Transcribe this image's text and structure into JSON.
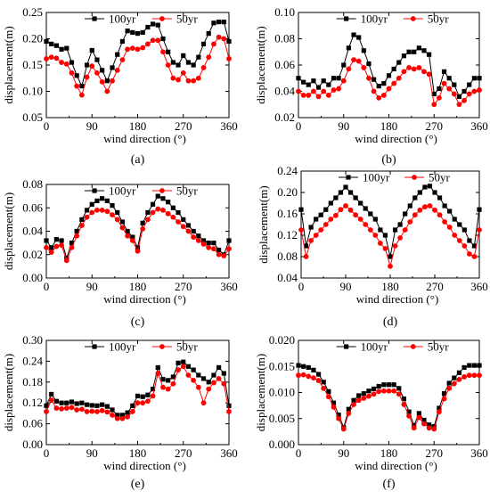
{
  "colors": {
    "s100": "#000000",
    "s50": "#ff0000"
  },
  "chart_data": [
    {
      "type": "line",
      "panel_label": "(a)",
      "xlabel": "wind direction (°)",
      "ylabel": "displacement(m)",
      "xlim": [
        0,
        360
      ],
      "ylim": [
        0.05,
        0.25
      ],
      "xticks": [
        0,
        90,
        180,
        270,
        360
      ],
      "yticks": [
        0.05,
        0.1,
        0.15,
        0.2,
        0.25
      ],
      "ytick_labels": [
        "0.05",
        "0.10",
        "0.15",
        "0.20",
        "0.25"
      ],
      "legend_position": "top",
      "x": [
        0,
        10,
        20,
        30,
        40,
        50,
        60,
        70,
        80,
        90,
        100,
        110,
        120,
        130,
        140,
        150,
        160,
        170,
        180,
        190,
        200,
        210,
        220,
        230,
        240,
        250,
        260,
        270,
        280,
        290,
        300,
        310,
        320,
        330,
        340,
        350,
        360
      ],
      "series": [
        {
          "name": "100yr",
          "values": [
            0.195,
            0.19,
            0.187,
            0.18,
            0.182,
            0.155,
            0.13,
            0.11,
            0.15,
            0.178,
            0.16,
            0.14,
            0.12,
            0.145,
            0.17,
            0.195,
            0.215,
            0.212,
            0.21,
            0.212,
            0.222,
            0.228,
            0.226,
            0.2,
            0.175,
            0.155,
            0.15,
            0.168,
            0.155,
            0.15,
            0.165,
            0.19,
            0.21,
            0.23,
            0.232,
            0.232,
            0.195
          ]
        },
        {
          "name": "50yr",
          "values": [
            0.162,
            0.165,
            0.163,
            0.155,
            0.152,
            0.135,
            0.11,
            0.093,
            0.127,
            0.148,
            0.135,
            0.118,
            0.1,
            0.12,
            0.14,
            0.16,
            0.18,
            0.182,
            0.18,
            0.183,
            0.19,
            0.197,
            0.197,
            0.175,
            0.15,
            0.125,
            0.122,
            0.135,
            0.12,
            0.12,
            0.125,
            0.145,
            0.165,
            0.19,
            0.203,
            0.2,
            0.162
          ]
        }
      ]
    },
    {
      "type": "line",
      "panel_label": "(b)",
      "xlabel": "wind direction (°)",
      "ylabel": "displacement(m)",
      "xlim": [
        0,
        360
      ],
      "ylim": [
        0.02,
        0.1
      ],
      "xticks": [
        0,
        90,
        180,
        270,
        360
      ],
      "yticks": [
        0.02,
        0.04,
        0.06,
        0.08,
        0.1
      ],
      "ytick_labels": [
        "0.02",
        "0.04",
        "0.06",
        "0.08",
        "0.10"
      ],
      "legend_position": "top",
      "x": [
        0,
        10,
        20,
        30,
        40,
        50,
        60,
        70,
        80,
        90,
        100,
        110,
        120,
        130,
        140,
        150,
        160,
        170,
        180,
        190,
        200,
        210,
        220,
        230,
        240,
        250,
        260,
        270,
        280,
        290,
        300,
        310,
        320,
        330,
        340,
        350,
        360
      ],
      "series": [
        {
          "name": "100yr",
          "values": [
            0.05,
            0.047,
            0.045,
            0.048,
            0.043,
            0.048,
            0.045,
            0.05,
            0.05,
            0.06,
            0.073,
            0.083,
            0.081,
            0.071,
            0.061,
            0.049,
            0.044,
            0.046,
            0.052,
            0.057,
            0.062,
            0.067,
            0.07,
            0.07,
            0.073,
            0.071,
            0.068,
            0.038,
            0.042,
            0.055,
            0.05,
            0.045,
            0.036,
            0.04,
            0.045,
            0.05,
            0.05
          ]
        },
        {
          "name": "50yr",
          "values": [
            0.04,
            0.037,
            0.037,
            0.04,
            0.036,
            0.04,
            0.037,
            0.041,
            0.042,
            0.048,
            0.057,
            0.064,
            0.063,
            0.058,
            0.05,
            0.04,
            0.035,
            0.037,
            0.042,
            0.046,
            0.05,
            0.055,
            0.058,
            0.057,
            0.058,
            0.055,
            0.053,
            0.03,
            0.035,
            0.046,
            0.042,
            0.038,
            0.03,
            0.033,
            0.038,
            0.04,
            0.041
          ]
        }
      ]
    },
    {
      "type": "line",
      "panel_label": "(c)",
      "xlabel": "wind direction (°)",
      "ylabel": "displacement(m)",
      "xlim": [
        0,
        360
      ],
      "ylim": [
        0.0,
        0.08
      ],
      "xticks": [
        0,
        90,
        180,
        270,
        360
      ],
      "yticks": [
        0.0,
        0.02,
        0.04,
        0.06,
        0.08
      ],
      "ytick_labels": [
        "0.00",
        "0.02",
        "0.04",
        "0.06",
        "0.08"
      ],
      "legend_position": "top",
      "x": [
        0,
        10,
        20,
        30,
        40,
        50,
        60,
        70,
        80,
        90,
        100,
        110,
        120,
        130,
        140,
        150,
        160,
        170,
        180,
        190,
        200,
        210,
        220,
        230,
        240,
        250,
        260,
        270,
        280,
        290,
        300,
        310,
        320,
        330,
        340,
        350,
        360
      ],
      "series": [
        {
          "name": "100yr",
          "values": [
            0.032,
            0.026,
            0.033,
            0.032,
            0.017,
            0.03,
            0.04,
            0.05,
            0.058,
            0.063,
            0.066,
            0.068,
            0.066,
            0.062,
            0.056,
            0.048,
            0.04,
            0.035,
            0.026,
            0.047,
            0.056,
            0.063,
            0.07,
            0.068,
            0.065,
            0.06,
            0.056,
            0.05,
            0.045,
            0.04,
            0.036,
            0.032,
            0.03,
            0.03,
            0.024,
            0.02,
            0.032
          ]
        },
        {
          "name": "50yr",
          "values": [
            0.026,
            0.022,
            0.027,
            0.028,
            0.015,
            0.026,
            0.036,
            0.045,
            0.052,
            0.056,
            0.058,
            0.058,
            0.057,
            0.054,
            0.05,
            0.043,
            0.036,
            0.032,
            0.023,
            0.042,
            0.05,
            0.056,
            0.059,
            0.058,
            0.055,
            0.052,
            0.048,
            0.044,
            0.04,
            0.035,
            0.032,
            0.029,
            0.026,
            0.025,
            0.02,
            0.019,
            0.025
          ]
        }
      ]
    },
    {
      "type": "line",
      "panel_label": "(d)",
      "xlabel": "wind direction (°)",
      "ylabel": "displacement(m)",
      "xlim": [
        0,
        360
      ],
      "ylim": [
        0.04,
        0.24
      ],
      "xticks": [
        0,
        90,
        180,
        270,
        360
      ],
      "yticks": [
        0.04,
        0.08,
        0.12,
        0.16,
        0.2,
        0.24
      ],
      "ytick_labels": [
        "0.04",
        "0.08",
        "0.12",
        "0.16",
        "0.20",
        "0.24"
      ],
      "legend_position": "top",
      "x": [
        0,
        10,
        20,
        30,
        40,
        50,
        60,
        70,
        80,
        90,
        100,
        110,
        120,
        130,
        140,
        150,
        160,
        170,
        180,
        190,
        200,
        210,
        220,
        230,
        240,
        250,
        260,
        270,
        280,
        290,
        300,
        310,
        320,
        330,
        340,
        350,
        360
      ],
      "series": [
        {
          "name": "100yr",
          "values": [
            0.168,
            0.1,
            0.135,
            0.15,
            0.158,
            0.168,
            0.18,
            0.19,
            0.2,
            0.21,
            0.2,
            0.19,
            0.18,
            0.17,
            0.16,
            0.15,
            0.13,
            0.12,
            0.08,
            0.13,
            0.14,
            0.16,
            0.175,
            0.19,
            0.2,
            0.21,
            0.212,
            0.2,
            0.19,
            0.175,
            0.165,
            0.15,
            0.14,
            0.13,
            0.11,
            0.1,
            0.168
          ]
        },
        {
          "name": "50yr",
          "values": [
            0.13,
            0.08,
            0.11,
            0.12,
            0.13,
            0.14,
            0.15,
            0.157,
            0.168,
            0.175,
            0.167,
            0.158,
            0.15,
            0.14,
            0.13,
            0.12,
            0.105,
            0.095,
            0.062,
            0.1,
            0.115,
            0.13,
            0.145,
            0.158,
            0.167,
            0.173,
            0.175,
            0.167,
            0.158,
            0.145,
            0.135,
            0.12,
            0.11,
            0.1,
            0.085,
            0.08,
            0.13
          ]
        }
      ]
    },
    {
      "type": "line",
      "panel_label": "(e)",
      "xlabel": "wind direction (°)",
      "ylabel": "displacement(m)",
      "xlim": [
        0,
        360
      ],
      "ylim": [
        0.0,
        0.3
      ],
      "xticks": [
        0,
        90,
        180,
        270,
        360
      ],
      "yticks": [
        0.0,
        0.06,
        0.12,
        0.18,
        0.24,
        0.3
      ],
      "ytick_labels": [
        "0.00",
        "0.06",
        "0.12",
        "0.18",
        "0.24",
        "0.30"
      ],
      "legend_position": "top",
      "x": [
        0,
        10,
        20,
        30,
        40,
        50,
        60,
        70,
        80,
        90,
        100,
        110,
        120,
        130,
        140,
        150,
        160,
        170,
        180,
        190,
        200,
        210,
        220,
        230,
        240,
        250,
        260,
        270,
        280,
        290,
        300,
        310,
        320,
        330,
        340,
        350,
        360
      ],
      "series": [
        {
          "name": "100yr",
          "values": [
            0.112,
            0.145,
            0.125,
            0.12,
            0.12,
            0.123,
            0.118,
            0.12,
            0.115,
            0.113,
            0.112,
            0.115,
            0.11,
            0.1,
            0.085,
            0.085,
            0.092,
            0.112,
            0.14,
            0.138,
            0.143,
            0.16,
            0.222,
            0.188,
            0.185,
            0.195,
            0.235,
            0.238,
            0.225,
            0.215,
            0.2,
            0.19,
            0.18,
            0.2,
            0.222,
            0.205,
            0.112
          ]
        },
        {
          "name": "50yr",
          "values": [
            0.095,
            0.128,
            0.105,
            0.103,
            0.105,
            0.107,
            0.1,
            0.102,
            0.095,
            0.096,
            0.095,
            0.098,
            0.094,
            0.085,
            0.075,
            0.075,
            0.08,
            0.095,
            0.12,
            0.12,
            0.125,
            0.14,
            0.205,
            0.165,
            0.16,
            0.175,
            0.215,
            0.225,
            0.2,
            0.185,
            0.165,
            0.12,
            0.16,
            0.178,
            0.19,
            0.175,
            0.095
          ]
        }
      ]
    },
    {
      "type": "line",
      "panel_label": "(f)",
      "xlabel": "wind direction (°)",
      "ylabel": "displacement(m)",
      "xlim": [
        0,
        360
      ],
      "ylim": [
        0.0,
        0.02
      ],
      "xticks": [
        0,
        90,
        180,
        270,
        360
      ],
      "yticks": [
        0.0,
        0.005,
        0.01,
        0.015,
        0.02
      ],
      "ytick_labels": [
        "0.000",
        "0.005",
        "0.010",
        "0.015",
        "0.020"
      ],
      "legend_position": "top",
      "x": [
        0,
        10,
        20,
        30,
        40,
        50,
        60,
        70,
        80,
        90,
        100,
        110,
        120,
        130,
        140,
        150,
        160,
        170,
        180,
        190,
        200,
        210,
        220,
        230,
        240,
        250,
        260,
        270,
        280,
        290,
        300,
        310,
        320,
        330,
        340,
        350,
        360
      ],
      "series": [
        {
          "name": "100yr",
          "values": [
            0.0152,
            0.015,
            0.0148,
            0.0143,
            0.0135,
            0.012,
            0.0102,
            0.008,
            0.0057,
            0.0033,
            0.0068,
            0.0085,
            0.0094,
            0.0098,
            0.0103,
            0.0107,
            0.0112,
            0.0115,
            0.0115,
            0.0115,
            0.0108,
            0.0088,
            0.0063,
            0.0037,
            0.006,
            0.0047,
            0.0038,
            0.0035,
            0.007,
            0.0098,
            0.0118,
            0.0128,
            0.0138,
            0.0148,
            0.0152,
            0.0152,
            0.0152
          ]
        },
        {
          "name": "50yr",
          "values": [
            0.0133,
            0.0134,
            0.0131,
            0.0128,
            0.0123,
            0.0108,
            0.0092,
            0.0072,
            0.005,
            0.003,
            0.006,
            0.0077,
            0.0085,
            0.0089,
            0.0093,
            0.0097,
            0.0102,
            0.0103,
            0.0103,
            0.0103,
            0.0097,
            0.0077,
            0.0055,
            0.0032,
            0.0052,
            0.004,
            0.0032,
            0.003,
            0.0063,
            0.0088,
            0.0108,
            0.0117,
            0.0125,
            0.013,
            0.0133,
            0.0133,
            0.0133
          ]
        }
      ]
    }
  ]
}
